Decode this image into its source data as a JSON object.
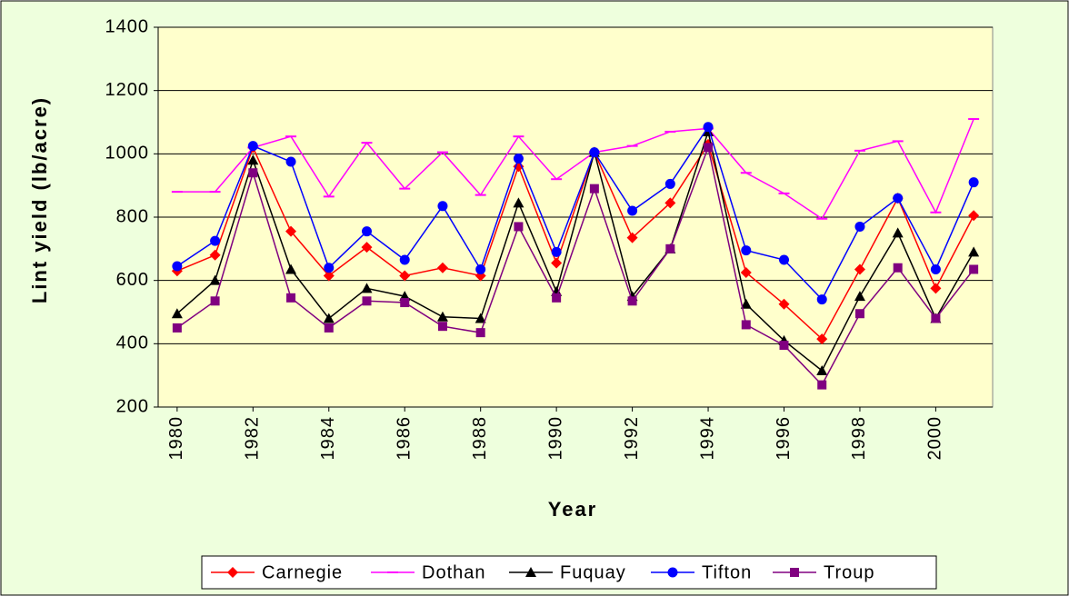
{
  "chart_data": {
    "type": "line",
    "x_label": "Year",
    "y_label": "Lint yield (lb/acre)",
    "x": [
      1980,
      1981,
      1982,
      1983,
      1984,
      1985,
      1986,
      1987,
      1988,
      1989,
      1990,
      1991,
      1992,
      1993,
      1994,
      1995,
      1996,
      1997,
      1998,
      1999,
      2000,
      2001
    ],
    "xlim": [
      1979.5,
      2001.5
    ],
    "xticks": [
      1980,
      1982,
      1984,
      1986,
      1988,
      1990,
      1992,
      1994,
      1996,
      1998,
      2000
    ],
    "ylim": [
      200,
      1400
    ],
    "yticks": [
      200,
      400,
      600,
      800,
      1000,
      1200,
      1400
    ],
    "grid": true,
    "legend": "bottom",
    "series": [
      {
        "name": "Carnegie",
        "color": "#ff0000",
        "marker": "diamond",
        "values": [
          630,
          680,
          1020,
          755,
          615,
          705,
          615,
          640,
          615,
          960,
          655,
          1005,
          735,
          845,
          1030,
          625,
          525,
          415,
          635,
          860,
          575,
          805
        ]
      },
      {
        "name": "Dothan",
        "color": "#ff00ff",
        "marker": "dash",
        "values": [
          880,
          880,
          1020,
          1055,
          865,
          1035,
          890,
          1005,
          870,
          1055,
          920,
          1005,
          1025,
          1070,
          1080,
          940,
          875,
          795,
          1010,
          1040,
          815,
          1110
        ]
      },
      {
        "name": "Fuquay",
        "color": "#000000",
        "marker": "triangle",
        "values": [
          495,
          600,
          980,
          635,
          480,
          575,
          550,
          485,
          480,
          845,
          565,
          1005,
          550,
          700,
          1070,
          525,
          410,
          315,
          550,
          750,
          480,
          690
        ]
      },
      {
        "name": "Tifton",
        "color": "#0000ff",
        "marker": "circle",
        "values": [
          645,
          725,
          1025,
          975,
          640,
          755,
          665,
          835,
          635,
          985,
          690,
          1005,
          820,
          905,
          1085,
          695,
          665,
          540,
          770,
          860,
          635,
          910
        ]
      },
      {
        "name": "Troup",
        "color": "#800080",
        "marker": "square",
        "values": [
          450,
          535,
          940,
          545,
          450,
          535,
          530,
          455,
          435,
          770,
          545,
          890,
          535,
          700,
          1020,
          460,
          395,
          270,
          495,
          640,
          480,
          635
        ]
      }
    ]
  }
}
